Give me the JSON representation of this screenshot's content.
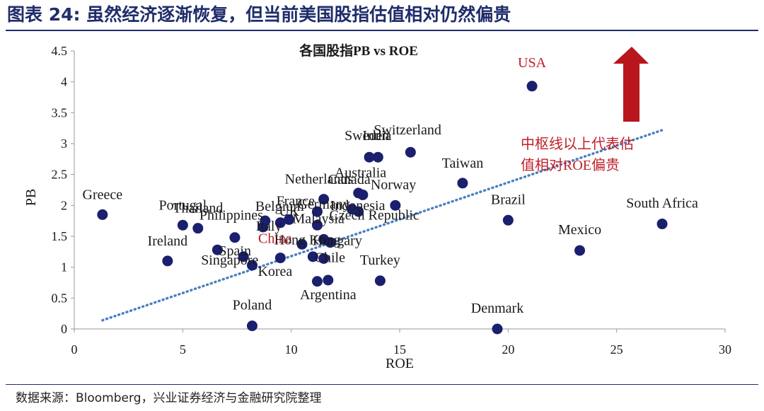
{
  "figure": {
    "heading": "图表 24: 虽然经济逐渐恢复，但当前美国股指估值相对仍然偏贵",
    "source": "数据来源：Bloomberg，兴业证券经济与金融研究院整理"
  },
  "colors": {
    "marker": "#1a1f6e",
    "trendline": "#4a7fc1",
    "highlight_text": "#c0202a",
    "arrow": "#b8161c",
    "axis": "#999999",
    "text": "#1a1a1a"
  },
  "chart_data": {
    "type": "scatter",
    "title": "各国股指PB vs ROE",
    "xlabel": "ROE",
    "ylabel": "PB",
    "xlim": [
      0,
      30
    ],
    "ylim": [
      0,
      4.5
    ],
    "x_ticks": [
      "0",
      "5",
      "10",
      "15",
      "20",
      "25",
      "30"
    ],
    "y_ticks": [
      "0",
      "0.5",
      "1",
      "1.5",
      "2",
      "2.5",
      "3",
      "3.5",
      "4",
      "4.5"
    ],
    "grid": false,
    "points": [
      {
        "x": 1.3,
        "y": 1.85,
        "label": "Greece"
      },
      {
        "x": 4.3,
        "y": 1.1,
        "label": "Ireland"
      },
      {
        "x": 5.0,
        "y": 1.68,
        "label": "Portugal"
      },
      {
        "x": 5.7,
        "y": 1.63,
        "label": "Thailand"
      },
      {
        "x": 6.6,
        "y": 1.28,
        "label": "Spain"
      },
      {
        "x": 7.4,
        "y": 1.48,
        "label": "Philippines"
      },
      {
        "x": 7.8,
        "y": 1.17,
        "label": "Singapore"
      },
      {
        "x": 8.2,
        "y": 1.03,
        "label": "Korea"
      },
      {
        "x": 8.2,
        "y": 0.05,
        "label": "Poland"
      },
      {
        "x": 8.7,
        "y": 1.65,
        "label": "Italy"
      },
      {
        "x": 8.8,
        "y": 1.75,
        "label": "Belgium"
      },
      {
        "x": 9.5,
        "y": 1.72,
        "label": "UK"
      },
      {
        "x": 9.5,
        "y": 1.15,
        "label": ""
      },
      {
        "x": 9.9,
        "y": 1.77,
        "label": "France"
      },
      {
        "x": 10.5,
        "y": 1.37,
        "label": "China"
      },
      {
        "x": 11.0,
        "y": 1.17,
        "label": ""
      },
      {
        "x": 11.2,
        "y": 1.9,
        "label": "Germany"
      },
      {
        "x": 11.2,
        "y": 1.68,
        "label": "Malaysia"
      },
      {
        "x": 11.2,
        "y": 0.77,
        "label": ""
      },
      {
        "x": 11.5,
        "y": 2.1,
        "label": "Netherlands"
      },
      {
        "x": 11.5,
        "y": 1.45,
        "label": "Hong Kong"
      },
      {
        "x": 11.5,
        "y": 1.14,
        "label": "Chile"
      },
      {
        "x": 11.8,
        "y": 1.4,
        "label": "Hungary"
      },
      {
        "x": 11.7,
        "y": 0.79,
        "label": "Argentina"
      },
      {
        "x": 12.8,
        "y": 1.94,
        "label": "Czech Republic"
      },
      {
        "x": 13.1,
        "y": 2.2,
        "label": "Canada"
      },
      {
        "x": 13.1,
        "y": 1.9,
        "label": "Indonesia"
      },
      {
        "x": 13.3,
        "y": 2.17,
        "label": "Australia"
      },
      {
        "x": 13.6,
        "y": 2.78,
        "label": "Sweden"
      },
      {
        "x": 14.0,
        "y": 2.78,
        "label": "India"
      },
      {
        "x": 14.1,
        "y": 0.78,
        "label": "Turkey"
      },
      {
        "x": 14.8,
        "y": 2.0,
        "label": "Norway"
      },
      {
        "x": 15.5,
        "y": 2.86,
        "label": "Switzerland"
      },
      {
        "x": 17.9,
        "y": 2.36,
        "label": "Taiwan"
      },
      {
        "x": 19.5,
        "y": 0.0,
        "label": "Denmark"
      },
      {
        "x": 20.0,
        "y": 1.76,
        "label": "Brazil"
      },
      {
        "x": 21.1,
        "y": 3.93,
        "label": "USA"
      },
      {
        "x": 23.3,
        "y": 1.27,
        "label": "Mexico"
      },
      {
        "x": 27.1,
        "y": 1.7,
        "label": "South Africa"
      }
    ],
    "trendline": {
      "style": "dotted",
      "from": [
        1.3,
        0.14
      ],
      "to": [
        27.2,
        3.23
      ]
    },
    "annotation": "中枢线以上代表估值相对ROE偏贵",
    "annotation_lines": [
      "中枢线以上代表估",
      "值相对ROE偏贵"
    ],
    "arrow": {
      "direction": "up"
    }
  }
}
